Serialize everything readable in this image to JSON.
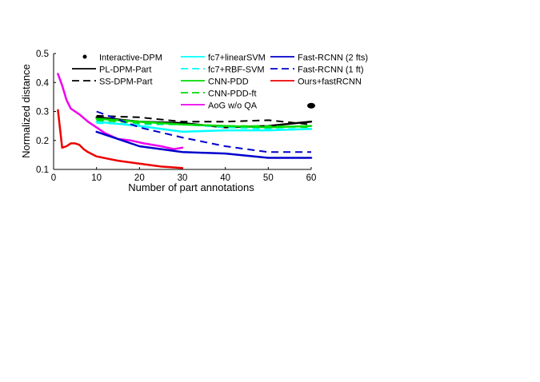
{
  "chart_data": {
    "type": "line",
    "title": "",
    "xlabel": "Number of part annotations",
    "ylabel": "Normalized distance",
    "xlim": [
      0,
      60
    ],
    "ylim": [
      0.1,
      0.5
    ],
    "xticks": [
      0,
      10,
      20,
      30,
      40,
      50,
      60
    ],
    "yticks": [
      0.1,
      0.2,
      0.3,
      0.4,
      0.5
    ],
    "grid": false,
    "legend_placement": "top",
    "series": [
      {
        "name": "Interactive-DPM",
        "style": "point",
        "color": "#000000",
        "x": [
          60
        ],
        "y": [
          0.32
        ]
      },
      {
        "name": "PL-DPM-Part",
        "style": "solid",
        "color": "#000000",
        "x": [
          10,
          20,
          30,
          40,
          50,
          60
        ],
        "y": [
          0.28,
          0.265,
          0.26,
          0.245,
          0.25,
          0.265
        ]
      },
      {
        "name": "SS-DPM-Part",
        "style": "dashed",
        "color": "#000000",
        "x": [
          10,
          20,
          30,
          40,
          50,
          60
        ],
        "y": [
          0.285,
          0.28,
          0.265,
          0.265,
          0.27,
          0.255
        ]
      },
      {
        "name": "fc7+linearSVM",
        "style": "solid",
        "color": "#00ffff",
        "x": [
          10,
          20,
          30,
          40,
          50,
          60
        ],
        "y": [
          0.265,
          0.25,
          0.23,
          0.235,
          0.235,
          0.24
        ]
      },
      {
        "name": "fc7+RBF-SVM",
        "style": "dashed",
        "color": "#00ffff",
        "x": [
          10,
          20,
          30,
          40,
          50,
          60
        ],
        "y": [
          0.26,
          0.255,
          0.255,
          0.245,
          0.24,
          0.24
        ]
      },
      {
        "name": "CNN-PDD",
        "style": "solid",
        "color": "#00dd00",
        "x": [
          10,
          20,
          30,
          40,
          50,
          60
        ],
        "y": [
          0.275,
          0.265,
          0.255,
          0.25,
          0.245,
          0.25
        ]
      },
      {
        "name": "CNN-PDD-ft",
        "style": "dashed",
        "color": "#00dd00",
        "x": [
          10,
          20,
          30,
          40,
          50,
          60
        ],
        "y": [
          0.27,
          0.26,
          0.255,
          0.25,
          0.25,
          0.245
        ]
      },
      {
        "name": "AoG w/o QA",
        "style": "solid",
        "color": "#ee00ee",
        "x": [
          1,
          2,
          3,
          4,
          6,
          8,
          10,
          12,
          15,
          18,
          21,
          25,
          28,
          30
        ],
        "y": [
          0.43,
          0.39,
          0.34,
          0.31,
          0.29,
          0.265,
          0.245,
          0.225,
          0.205,
          0.2,
          0.19,
          0.18,
          0.17,
          0.175
        ]
      },
      {
        "name": "Fast-RCNN (2 fts)",
        "style": "solid",
        "color": "#0000cc",
        "x": [
          10,
          20,
          30,
          40,
          50,
          60
        ],
        "y": [
          0.23,
          0.18,
          0.16,
          0.155,
          0.14,
          0.14
        ]
      },
      {
        "name": "Fast-RCNN (1 ft)",
        "style": "dashed",
        "color": "#0000cc",
        "x": [
          10,
          20,
          30,
          40,
          50,
          60
        ],
        "y": [
          0.3,
          0.245,
          0.21,
          0.18,
          0.16,
          0.16
        ]
      },
      {
        "name": "Ours+fastRCNN",
        "style": "solid",
        "color": "#ee0000",
        "x": [
          1,
          2,
          3,
          4,
          5,
          6,
          7,
          8,
          10,
          15,
          20,
          25,
          30
        ],
        "y": [
          0.305,
          0.175,
          0.18,
          0.19,
          0.19,
          0.185,
          0.17,
          0.16,
          0.145,
          0.13,
          0.12,
          0.11,
          0.105
        ]
      }
    ]
  }
}
